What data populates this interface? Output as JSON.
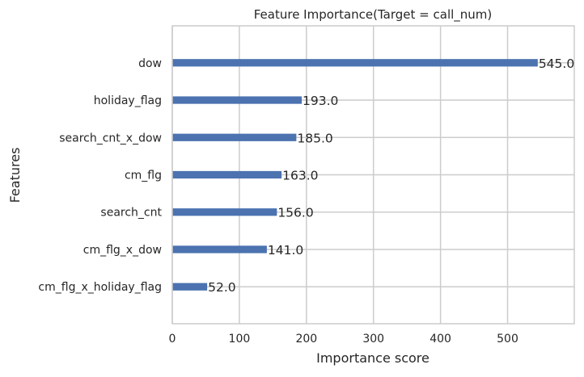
{
  "chart_data": {
    "type": "bar",
    "orientation": "horizontal",
    "title": "Feature Importance(Target = call_num)",
    "xlabel": "Importance score",
    "ylabel": "Features",
    "categories": [
      "cm_flg_x_holiday_flag",
      "cm_flg_x_dow",
      "search_cnt",
      "cm_flg",
      "search_cnt_x_dow",
      "holiday_flag",
      "dow"
    ],
    "values": [
      52.0,
      141.0,
      156.0,
      163.0,
      185.0,
      193.0,
      545.0
    ],
    "value_labels": [
      "52.0",
      "141.0",
      "156.0",
      "163.0",
      "185.0",
      "193.0",
      "545.0"
    ],
    "xlim": [
      0,
      599.5
    ],
    "xticks": [
      0,
      100,
      200,
      300,
      400,
      500
    ],
    "xtick_labels": [
      "0",
      "100",
      "200",
      "300",
      "400",
      "500"
    ],
    "grid": true,
    "legend": "none",
    "colors": {
      "bar": "#4c72b0",
      "grid": "#cccccc",
      "frame": "#cccccc",
      "text": "#262626",
      "background": "#ffffff"
    }
  }
}
